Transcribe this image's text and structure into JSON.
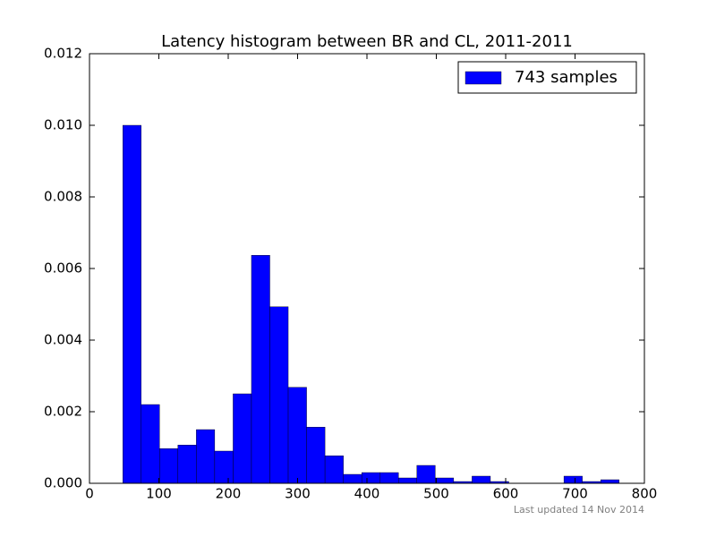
{
  "chart_data": {
    "type": "histogram",
    "title": "Latency histogram between BR and CL, 2011-2011",
    "footnote": "Last updated 14 Nov 2014",
    "bins": [
      48,
      74.5,
      101,
      127.5,
      154,
      180.5,
      207,
      233.5,
      260,
      286.5,
      313,
      339.5,
      366,
      392.5,
      419,
      445.5,
      472,
      498.5,
      525,
      551.5,
      578,
      604.5,
      631,
      657.5,
      684,
      710.5,
      737,
      763.5
    ],
    "series": [
      {
        "name": "743 samples",
        "color": "#0000ff",
        "values": [
          0.01,
          0.0022,
          0.00097,
          0.00107,
          0.0015,
          0.0009,
          0.0025,
          0.00637,
          0.00493,
          0.00268,
          0.00157,
          0.00077,
          0.00025,
          0.0003,
          0.0003,
          0.00015,
          0.0005,
          0.00015,
          5e-05,
          0.0002,
          5e-05,
          0,
          0,
          0,
          0.0002,
          5e-05,
          0.0001
        ]
      }
    ],
    "xlim": [
      0,
      800
    ],
    "xticks": [
      0,
      100,
      200,
      300,
      400,
      500,
      600,
      700,
      800
    ],
    "ylim": [
      0,
      0.012
    ],
    "yticks": [
      {
        "value": 0,
        "label": "0.000"
      },
      0.002,
      0.004,
      0.006,
      0.008,
      {
        "value": 0.01,
        "label": "0.010"
      },
      0.012
    ],
    "legend": "upper right"
  }
}
